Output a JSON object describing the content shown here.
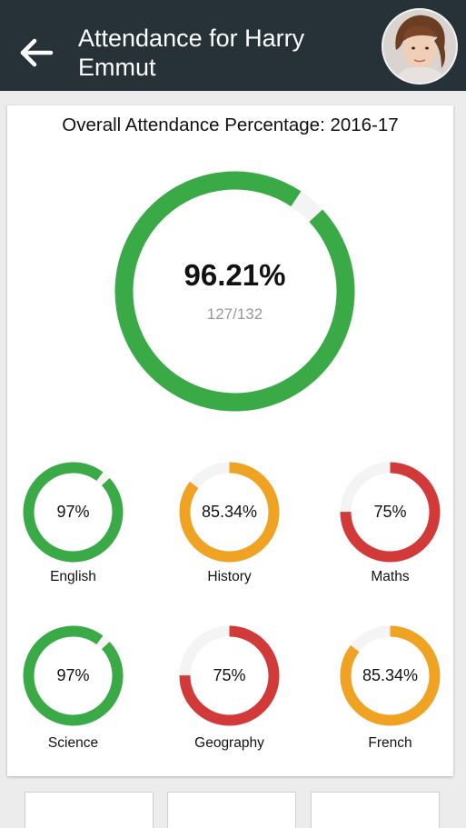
{
  "header": {
    "title": "Attendance for Harry Emmut",
    "back_icon": "arrow-left-icon",
    "avatar_icon": "student-avatar"
  },
  "overall": {
    "title": "Overall Attendance Percentage: 2016-17",
    "percent_label": "96.21%",
    "count_label": "127/132",
    "percent": 96.21
  },
  "subjects": [
    {
      "name": "English",
      "percent_label": "97%",
      "percent": 97,
      "color": "#3aaa47"
    },
    {
      "name": "History",
      "percent_label": "85.34%",
      "percent": 85.34,
      "color": "#f0a223"
    },
    {
      "name": "Maths",
      "percent_label": "75%",
      "percent": 75,
      "color": "#d23a3a"
    },
    {
      "name": "Science",
      "percent_label": "97%",
      "percent": 97,
      "color": "#3aaa47"
    },
    {
      "name": "Geography",
      "percent_label": "75%",
      "percent": 75,
      "color": "#d23a3a"
    },
    {
      "name": "French",
      "percent_label": "85.34%",
      "percent": 85.34,
      "color": "#f0a223"
    }
  ],
  "colors": {
    "appbar": "#263238",
    "good": "#3aaa47",
    "average": "#f0a223",
    "poor": "#d23a3a",
    "track": "#f4f4f4"
  }
}
